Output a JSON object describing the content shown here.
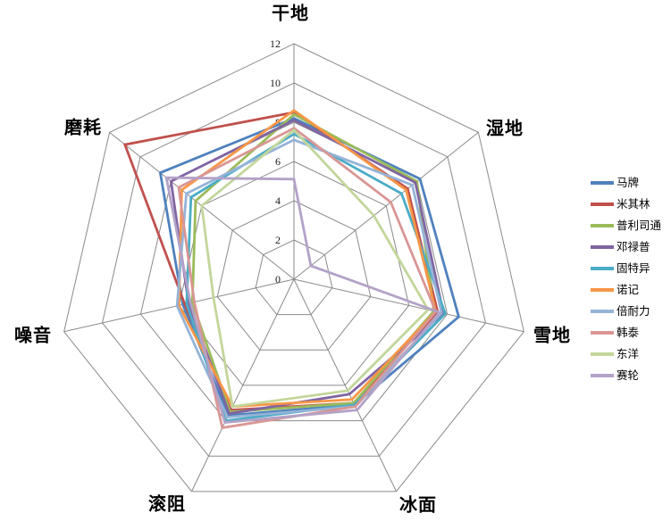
{
  "chart_data": {
    "type": "radar",
    "categories": [
      "干地",
      "湿地",
      "雪地",
      "冰面",
      "滚阻",
      "噪音",
      "磨耗"
    ],
    "ticks": [
      0,
      2,
      4,
      6,
      8,
      10,
      12
    ],
    "rmax": 12,
    "grid": true,
    "legend_position": "right",
    "grid_color": "#8a8a8a",
    "series": [
      {
        "name": "马牌",
        "color": "#4F81BD",
        "values": [
          8.2,
          8.2,
          8.6,
          7.1,
          7.7,
          5.8,
          8.7
        ]
      },
      {
        "name": "米其林",
        "color": "#C0504D",
        "values": [
          8.5,
          7.4,
          7.5,
          7.0,
          7.4,
          5.7,
          11.0
        ]
      },
      {
        "name": "普利司通",
        "color": "#9BBB59",
        "values": [
          8.4,
          8.0,
          7.3,
          7.0,
          7.5,
          5.3,
          6.4
        ]
      },
      {
        "name": "邓禄普",
        "color": "#8064A2",
        "values": [
          8.1,
          7.9,
          7.8,
          6.5,
          7.6,
          5.5,
          8.0
        ]
      },
      {
        "name": "固特异",
        "color": "#4BACC6",
        "values": [
          7.4,
          7.0,
          7.9,
          7.1,
          8.0,
          5.6,
          6.7
        ]
      },
      {
        "name": "诺记",
        "color": "#F79646",
        "values": [
          8.6,
          7.3,
          7.4,
          6.8,
          7.2,
          6.0,
          7.3
        ]
      },
      {
        "name": "倍耐力",
        "color": "#95B3D7",
        "values": [
          7.1,
          7.7,
          7.7,
          7.2,
          7.8,
          6.1,
          7.0
        ]
      },
      {
        "name": "韩泰",
        "color": "#D99694",
        "values": [
          7.7,
          6.3,
          7.4,
          7.2,
          8.4,
          5.2,
          7.5
        ]
      },
      {
        "name": "东洋",
        "color": "#C3D69B",
        "values": [
          7.6,
          5.2,
          7.0,
          6.3,
          7.2,
          4.2,
          6.0
        ]
      },
      {
        "name": "赛轮",
        "color": "#B3A2C7",
        "values": [
          5.1,
          1.1,
          7.6,
          7.4,
          8.1,
          5.4,
          8.3
        ]
      }
    ]
  }
}
